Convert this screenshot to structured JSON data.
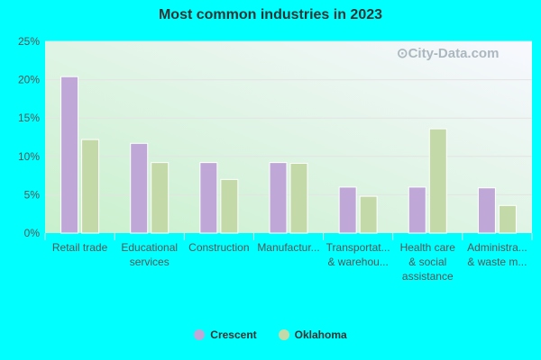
{
  "chart_data": {
    "type": "bar",
    "title": "Most common industries in 2023",
    "categories": [
      [
        "Retail trade"
      ],
      [
        "Educational",
        "services"
      ],
      [
        "Construction"
      ],
      [
        "Manufactur..."
      ],
      [
        "Transportat...",
        "& warehou..."
      ],
      [
        "Health care",
        "& social",
        "assistance"
      ],
      [
        "Administra...",
        "& waste m..."
      ]
    ],
    "series": [
      {
        "name": "Crescent",
        "color": "#bfa8d8",
        "values": [
          20.4,
          11.7,
          9.2,
          9.2,
          6.0,
          6.0,
          5.9
        ]
      },
      {
        "name": "Oklahoma",
        "color": "#c4d9a8",
        "values": [
          12.2,
          9.2,
          7.0,
          9.1,
          4.8,
          13.6,
          3.6
        ]
      }
    ],
    "ylim": [
      0,
      25
    ],
    "yticks": [
      "0%",
      "5%",
      "10%",
      "15%",
      "20%",
      "25%"
    ],
    "grid": true,
    "legend": "bottom",
    "watermark": "City-Data.com"
  }
}
